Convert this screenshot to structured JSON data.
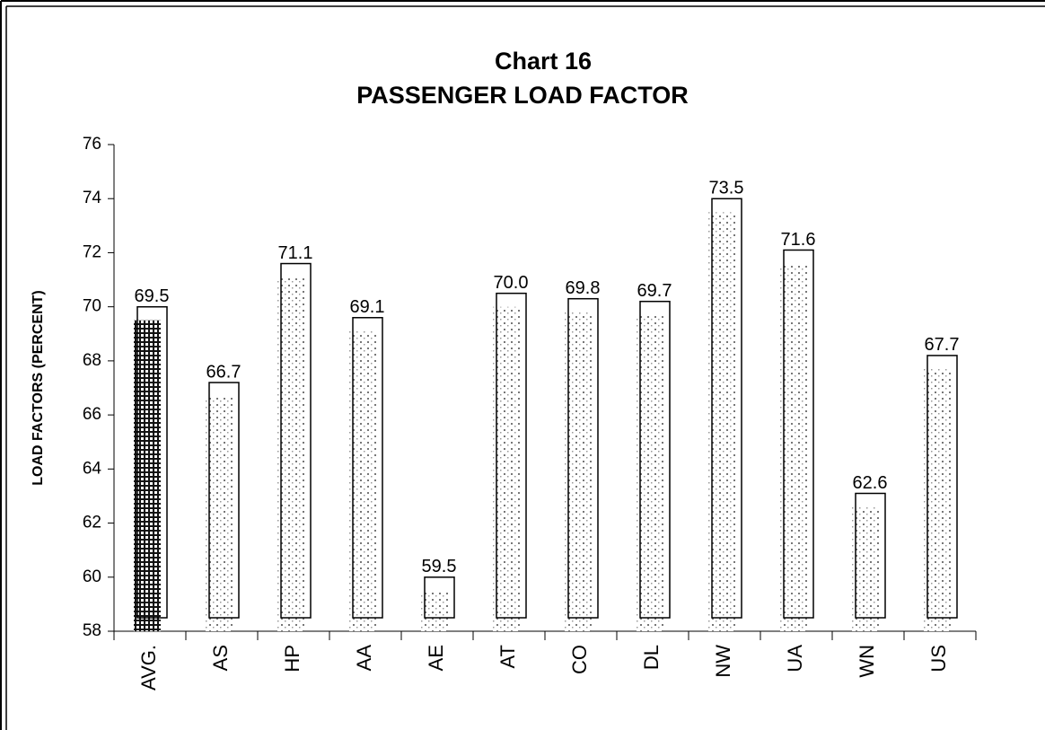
{
  "chart_data": {
    "type": "bar",
    "title": "Chart 16",
    "subtitle": "PASSENGER LOAD FACTOR",
    "y_label": "LOAD FACTORS (PERCENT)",
    "categories": [
      "AVG.",
      "AS",
      "HP",
      "AA",
      "AE",
      "AT",
      "CO",
      "DL",
      "NW",
      "UA",
      "WN",
      "US"
    ],
    "values": [
      69.5,
      66.7,
      71.1,
      69.1,
      59.5,
      70.0,
      69.8,
      69.7,
      73.5,
      71.6,
      62.6,
      67.7
    ],
    "value_labels": [
      "69.5",
      "66.7",
      "71.1",
      "69.1",
      "59.5",
      "70.0",
      "69.8",
      "69.7",
      "73.5",
      "71.6",
      "62.6",
      "67.7"
    ],
    "color": "#000000",
    "ylim": [
      58,
      76
    ],
    "yticks": [
      58,
      60,
      62,
      64,
      66,
      68,
      70,
      72,
      74,
      76
    ],
    "grid": false
  }
}
